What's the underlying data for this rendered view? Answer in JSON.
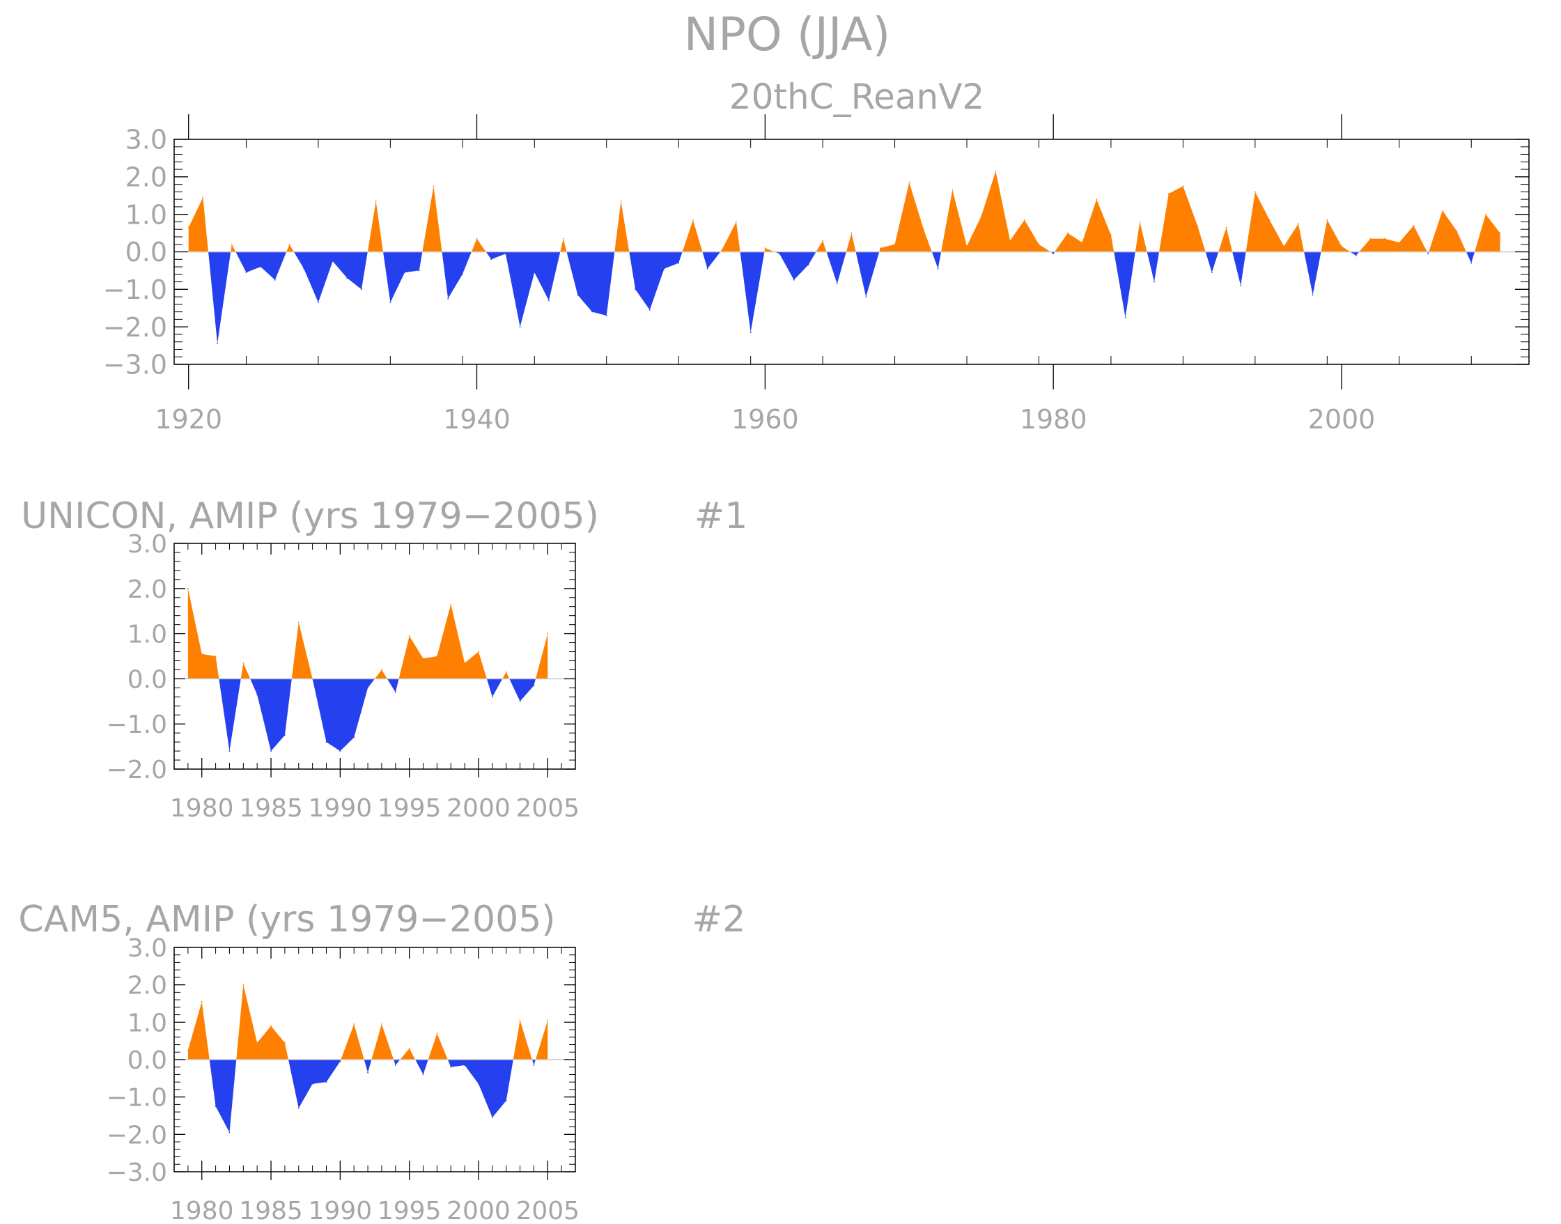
{
  "figure": {
    "title": "NPO (JJA)",
    "colors": {
      "positive": "#ff8000",
      "negative": "#2540ef",
      "frame": "#000000",
      "text": "#a6a6a6"
    }
  },
  "chart_data": [
    {
      "type": "area",
      "title": "20thC_ReanV2",
      "xlabel": "",
      "ylabel": "",
      "xlim": [
        1920,
        2011
      ],
      "ylim": [
        -3,
        3
      ],
      "yticks": [
        "3.0",
        "2.0",
        "1.0",
        "0.0",
        "−1.0",
        "−2.0",
        "−3.0"
      ],
      "xticks": [
        "1920",
        "1940",
        "1960",
        "1980",
        "2000"
      ],
      "grid": false,
      "x": [
        1920,
        1921,
        1922,
        1923,
        1924,
        1925,
        1926,
        1927,
        1928,
        1929,
        1930,
        1931,
        1932,
        1933,
        1934,
        1935,
        1936,
        1937,
        1938,
        1939,
        1940,
        1941,
        1942,
        1943,
        1944,
        1945,
        1946,
        1947,
        1948,
        1949,
        1950,
        1951,
        1952,
        1953,
        1954,
        1955,
        1956,
        1957,
        1958,
        1959,
        1960,
        1961,
        1962,
        1963,
        1964,
        1965,
        1966,
        1967,
        1968,
        1969,
        1970,
        1971,
        1972,
        1973,
        1974,
        1975,
        1976,
        1977,
        1978,
        1979,
        1980,
        1981,
        1982,
        1983,
        1984,
        1985,
        1986,
        1987,
        1988,
        1989,
        1990,
        1991,
        1992,
        1993,
        1994,
        1995,
        1996,
        1997,
        1998,
        1999,
        2000,
        2001,
        2002,
        2003,
        2004,
        2005,
        2006,
        2007,
        2008,
        2009,
        2010,
        2011
      ],
      "values": [
        0.65,
        1.45,
        -2.45,
        0.2,
        -0.55,
        -0.4,
        -0.75,
        0.2,
        -0.45,
        -1.35,
        -0.25,
        -0.7,
        -1.0,
        1.35,
        -1.35,
        -0.55,
        -0.5,
        1.75,
        -1.25,
        -0.6,
        0.35,
        -0.2,
        -0.05,
        -2.0,
        -0.55,
        -1.3,
        0.35,
        -1.15,
        -1.6,
        -1.7,
        1.35,
        -1.0,
        -1.55,
        -0.45,
        -0.3,
        0.85,
        -0.45,
        0.05,
        0.8,
        -2.15,
        0.1,
        -0.05,
        -0.75,
        -0.35,
        0.3,
        -0.85,
        0.5,
        -1.2,
        0.1,
        0.2,
        1.85,
        0.6,
        -0.45,
        1.65,
        0.15,
        0.95,
        2.15,
        0.3,
        0.85,
        0.2,
        -0.05,
        0.5,
        0.25,
        1.4,
        0.45,
        -1.75,
        0.8,
        -0.8,
        1.55,
        1.75,
        0.7,
        -0.55,
        0.65,
        -0.9,
        1.6,
        0.85,
        0.15,
        0.75,
        -1.15,
        0.85,
        0.15,
        -0.1,
        0.35,
        0.35,
        0.25,
        0.7,
        -0.05,
        1.1,
        0.55,
        -0.3,
        1.0,
        0.5
      ]
    },
    {
      "type": "area",
      "title": "UNICON, AMIP (yrs 1979−2005)",
      "label": "#1",
      "xlabel": "",
      "ylabel": "",
      "xlim": [
        1979,
        2005
      ],
      "ylim": [
        -2,
        3
      ],
      "yticks": [
        "3.0",
        "2.0",
        "1.0",
        "0.0",
        "−1.0",
        "−2.0"
      ],
      "xticks": [
        "1980",
        "1985",
        "1990",
        "1995",
        "2000",
        "2005"
      ],
      "grid": false,
      "x": [
        1979,
        1980,
        1981,
        1982,
        1983,
        1984,
        1985,
        1986,
        1987,
        1988,
        1989,
        1990,
        1991,
        1992,
        1993,
        1994,
        1995,
        1996,
        1997,
        1998,
        1999,
        2000,
        2001,
        2002,
        2003,
        2004,
        2005
      ],
      "values": [
        2.0,
        0.55,
        0.5,
        -1.6,
        0.35,
        -0.35,
        -1.6,
        -1.25,
        1.25,
        0.0,
        -1.4,
        -1.6,
        -1.3,
        -0.2,
        0.2,
        -0.3,
        0.95,
        0.45,
        0.5,
        1.65,
        0.35,
        0.6,
        -0.4,
        0.15,
        -0.5,
        -0.15,
        1.0
      ]
    },
    {
      "type": "area",
      "title": "CAM5, AMIP (yrs 1979−2005)",
      "label": "#2",
      "xlabel": "",
      "ylabel": "",
      "xlim": [
        1979,
        2005
      ],
      "ylim": [
        -3,
        3
      ],
      "yticks": [
        "3.0",
        "2.0",
        "1.0",
        "0.0",
        "−1.0",
        "−2.0",
        "−3.0"
      ],
      "xticks": [
        "1980",
        "1985",
        "1990",
        "1995",
        "2000",
        "2005"
      ],
      "grid": false,
      "x": [
        1979,
        1980,
        1981,
        1982,
        1983,
        1984,
        1985,
        1986,
        1987,
        1988,
        1989,
        1990,
        1991,
        1992,
        1993,
        1994,
        1995,
        1996,
        1997,
        1998,
        1999,
        2000,
        2001,
        2002,
        2003,
        2004,
        2005
      ],
      "values": [
        0.25,
        1.55,
        -1.25,
        -1.95,
        2.0,
        0.45,
        0.9,
        0.45,
        -1.3,
        -0.65,
        -0.6,
        -0.05,
        0.95,
        -0.35,
        0.95,
        -0.15,
        0.3,
        -0.4,
        0.7,
        -0.2,
        -0.15,
        -0.65,
        -1.55,
        -1.1,
        1.05,
        -0.15,
        1.05
      ]
    }
  ]
}
